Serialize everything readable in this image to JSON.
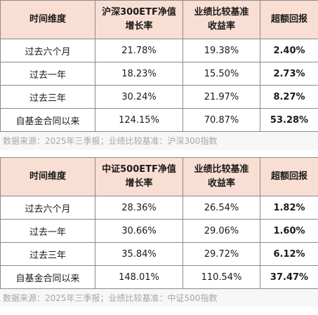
{
  "tables": [
    {
      "headers": {
        "period": "时间维度",
        "nav_line1": "沪深300ETF净值",
        "nav_line2": "增长率",
        "bench_line1": "业绩比较基准",
        "bench_line2": "收益率",
        "excess": "超额回报"
      },
      "rows": [
        {
          "period": "过去六个月",
          "nav": "21.78%",
          "bench": "19.38%",
          "excess": "2.40%"
        },
        {
          "period": "过去一年",
          "nav": "18.23%",
          "bench": "15.50%",
          "excess": "2.73%"
        },
        {
          "period": "过去三年",
          "nav": "30.24%",
          "bench": "21.97%",
          "excess": "8.27%"
        },
        {
          "period": "自基金合同以来",
          "nav": "124.15%",
          "bench": "70.87%",
          "excess": "53.28%"
        }
      ],
      "note": "数据来源：2025年三季报；业绩比较基准：沪深300指数"
    },
    {
      "headers": {
        "period": "时间维度",
        "nav_line1": "中证500ETF净值",
        "nav_line2": "增长率",
        "bench_line1": "业绩比较基准",
        "bench_line2": "收益率",
        "excess": "超额回报"
      },
      "rows": [
        {
          "period": "过去六个月",
          "nav": "28.36%",
          "bench": "26.54%",
          "excess": "1.82%"
        },
        {
          "period": "过去一年",
          "nav": "30.66%",
          "bench": "29.06%",
          "excess": "1.60%"
        },
        {
          "period": "过去三年",
          "nav": "35.84%",
          "bench": "29.72%",
          "excess": "6.12%"
        },
        {
          "period": "自基金合同以来",
          "nav": "148.01%",
          "bench": "110.54%",
          "excess": "37.47%"
        }
      ],
      "note": "数据来源：2025年三季报；业绩比较基准：中证500指数"
    }
  ],
  "colors": {
    "header_bg": "#f9ded3",
    "excess_text": "#c00000",
    "note_text": "#a6a6a6",
    "border": "#8a8a8a"
  }
}
